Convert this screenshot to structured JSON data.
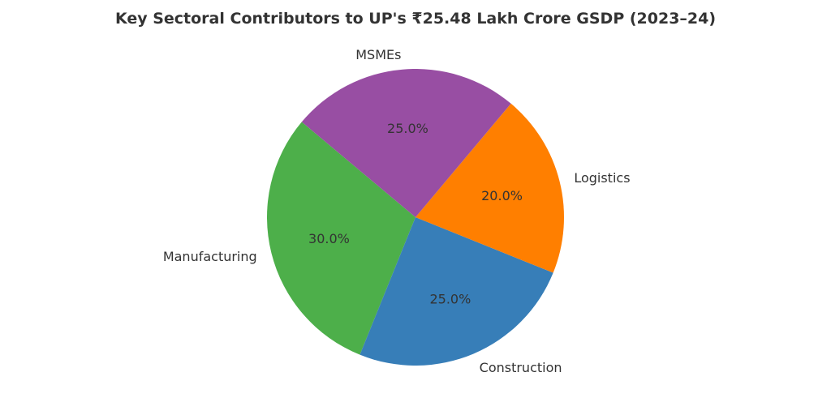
{
  "chart_data": {
    "type": "pie",
    "title": "Key Sectoral Contributors to UP's ₹25.48 Lakh Crore GSDP (2023–24)",
    "categories": [
      "Manufacturing",
      "Construction",
      "Logistics",
      "MSMEs"
    ],
    "values": [
      30.0,
      25.0,
      20.0,
      25.0
    ],
    "value_labels": [
      "30.0%",
      "25.0%",
      "20.0%",
      "25.0%"
    ],
    "colors": [
      "#4daf4a",
      "#377eb8",
      "#ff7f00",
      "#984ea3"
    ],
    "start_angle_deg": 140,
    "direction": "counterclockwise",
    "legend": "none"
  }
}
